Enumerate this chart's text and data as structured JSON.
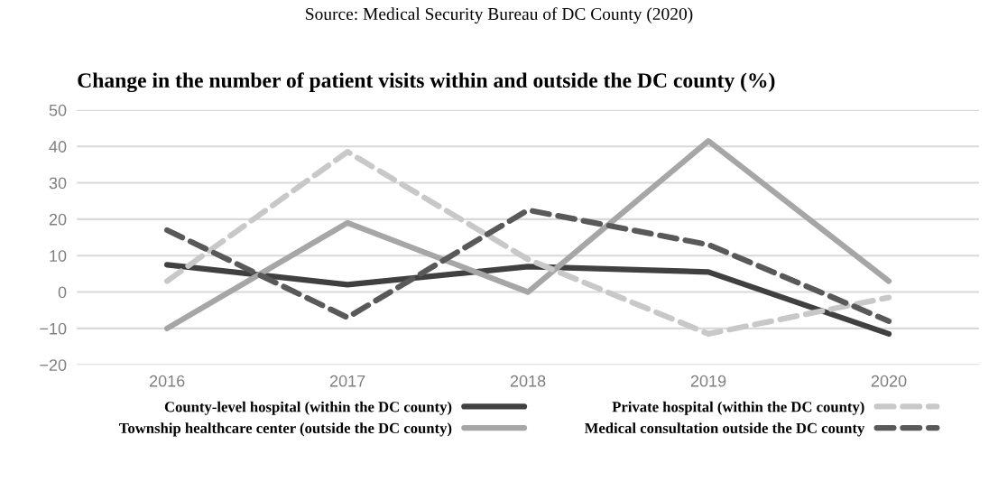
{
  "chart_data": {
    "type": "line",
    "title": "Change in the number of patient visits within and outside the DC county (%)",
    "annotations": [
      "Source: Medical Security Bureau of DC County (2020)"
    ],
    "categories": [
      "2016",
      "2017",
      "2018",
      "2019",
      "2020"
    ],
    "series": [
      {
        "name": "County-level hospital (within the DC county)",
        "color": "#404040",
        "line_style": "solid",
        "values": [
          7.5,
          2,
          7,
          5.5,
          -11.5
        ]
      },
      {
        "name": "Township healthcare center (outside the DC county)",
        "color": "#a6a6a6",
        "line_style": "solid",
        "values": [
          -10,
          19,
          0,
          41.5,
          3
        ]
      },
      {
        "name": "Private hospital (within the DC county)",
        "color": "#c8c8c8",
        "line_style": "dashed",
        "values": [
          3,
          38.5,
          9,
          -11.5,
          -1.5
        ]
      },
      {
        "name": "Medical consultation outside the DC county",
        "color": "#595959",
        "line_style": "dashed",
        "values": [
          17,
          -7,
          22.5,
          13,
          -8
        ]
      }
    ],
    "ylim": [
      -20,
      50
    ],
    "yticks": [
      {
        "value": -20,
        "label": "−20"
      },
      {
        "value": -10,
        "label": "−10"
      },
      0,
      10,
      20,
      30,
      40,
      50
    ],
    "grid": "y",
    "legend": "bottom",
    "marker": "none"
  }
}
